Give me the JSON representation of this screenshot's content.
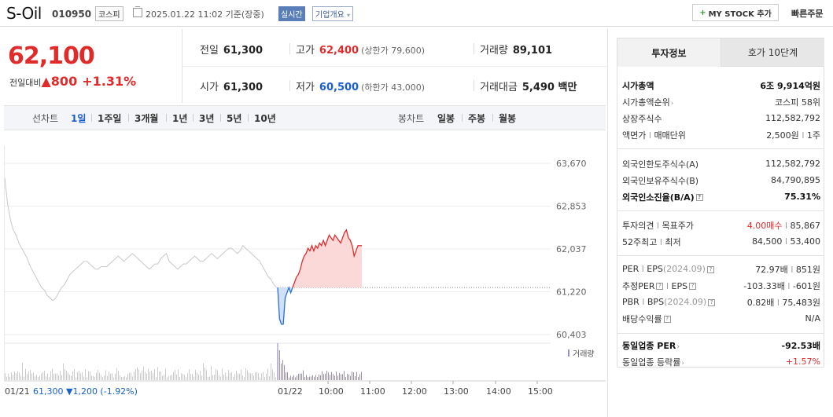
{
  "header": {
    "stock_name": "S-Oil",
    "stock_code": "010950",
    "market": "코스피",
    "datetime": "2025.01.22 11:02 기준(장중)",
    "realtime": "실시간",
    "company_info": "기업개요",
    "mystock_label": "MY STOCK 추가",
    "quick_order": "빠른주문"
  },
  "price": {
    "current": "62,100",
    "change_label": "전일대비",
    "change_value": "800",
    "change_pct": "+1.31%"
  },
  "quote": {
    "prev_label": "전일",
    "prev": "61,300",
    "high_label": "고가",
    "high": "62,400",
    "upper_limit": "(상한가 79,600)",
    "volume_label": "거래량",
    "volume": "89,101",
    "open_label": "시가",
    "open": "61,300",
    "low_label": "저가",
    "low": "60,500",
    "lower_limit": "(하한가 43,000)",
    "amount_label": "거래대금",
    "amount": "5,490 백만"
  },
  "period_bar": {
    "line_chart": "선차트",
    "periods": [
      "1일",
      "1주일",
      "3개월",
      "1년",
      "3년",
      "5년",
      "10년"
    ],
    "candle_chart": "봉차트",
    "candles": [
      "일봉",
      "주봉",
      "월봉"
    ]
  },
  "chart_data": {
    "type": "line",
    "y_ticks": [
      "63,670",
      "62,853",
      "62,037",
      "61,220",
      "60,403"
    ],
    "ylim": [
      60403,
      63670
    ],
    "baseline": 61300,
    "volume_legend": "거래량",
    "x_ticks": [
      "01/21",
      "01/22",
      "10:00",
      "11:00",
      "12:00",
      "13:00",
      "14:00",
      "15:00"
    ],
    "prev_day_summary": {
      "date": "01/21",
      "close": "61,300",
      "change": "▼1,200",
      "pct": "(-1.92%)"
    },
    "series": [
      {
        "values": [
          63400,
          62900,
          62600,
          62400,
          62300,
          62150,
          62050,
          61950,
          61850,
          61700,
          61600,
          61500,
          61400,
          61300,
          61250,
          61150,
          61100,
          61050,
          61100,
          61200,
          61300,
          61350,
          61450,
          61550,
          61600,
          61650,
          61700,
          61750,
          61800,
          61800,
          61750,
          61700,
          61650,
          61650,
          61700,
          61700,
          61700,
          61750,
          61800,
          61850,
          61900,
          61850,
          61800,
          61850,
          61900,
          61950,
          61900,
          61850,
          61800,
          61750,
          61700,
          61650,
          61700,
          61750,
          61750,
          61850,
          61900,
          61950,
          61800,
          61750,
          61700,
          61650,
          61700,
          61750,
          61750,
          61800,
          61850,
          61900,
          61850,
          61800,
          61800,
          61850,
          61900,
          61950,
          61900,
          61850,
          61900,
          61950,
          62000,
          62050,
          62050,
          62000,
          61950,
          62000,
          62100,
          62050,
          62000,
          61950,
          61900,
          61850,
          61800,
          61700,
          61600,
          61500,
          61450,
          61350,
          61300
        ]
      },
      {
        "values": [
          61300,
          60700,
          60600,
          60600,
          61100,
          61200,
          61300,
          61200,
          61300
        ]
      },
      {
        "values": [
          61300,
          61400,
          61500,
          61550,
          61650,
          61800,
          61900,
          61950,
          62050,
          62000,
          62100,
          62000,
          62100,
          62050,
          62150,
          62100,
          62200,
          62100,
          62200,
          62300,
          62250,
          62200,
          62300,
          62250,
          62200,
          62150,
          62250,
          62350,
          62400,
          62250,
          62200,
          62100,
          61900,
          62000,
          62100,
          62100,
          62100
        ]
      }
    ]
  },
  "right_panel": {
    "tab_invest": "투자정보",
    "tab_order": "호가 10단계",
    "market_cap_label": "시가총액",
    "market_cap": "6조 9,914억원",
    "cap_rank_label": "시가총액순위",
    "cap_rank": "코스피 58위",
    "shares_label": "상장주식수",
    "shares": "112,582,792",
    "par_label": "액면가",
    "par_sep": "l",
    "unit_label": "매매단위",
    "par_value": "2,500원",
    "unit_value": "1주",
    "foreign_limit_label": "외국인한도주식수(A)",
    "foreign_limit": "112,582,792",
    "foreign_hold_label": "외국인보유주식수(B)",
    "foreign_hold": "84,790,895",
    "foreign_ratio_label": "외국인소진율(B/A)",
    "foreign_ratio": "75.31%",
    "opinion_label": "투자의견",
    "target_label": "목표주가",
    "opinion": "4.00매수",
    "target": "85,867",
    "w52_label": "52주최고",
    "w52_low_label": "최저",
    "w52_high": "84,500",
    "w52_low": "53,400",
    "per_label": "PER",
    "eps_label": "EPS",
    "eps_year": "(2024.09)",
    "per": "72.97배",
    "eps": "851원",
    "eper_label": "추정PER",
    "eeps_label": "EPS",
    "eper": "-103.33배",
    "eeps": "-601원",
    "pbr_label": "PBR",
    "bps_label": "BPS",
    "bps_year": "(2024.09)",
    "pbr": "0.82배",
    "bps": "75,483원",
    "div_label": "배당수익률",
    "div": "N/A",
    "peer_per_label": "동일업종 PER",
    "peer_per": "-92.53배",
    "peer_rate_label": "동일업종 등락률",
    "peer_rate": "+1.57%"
  }
}
